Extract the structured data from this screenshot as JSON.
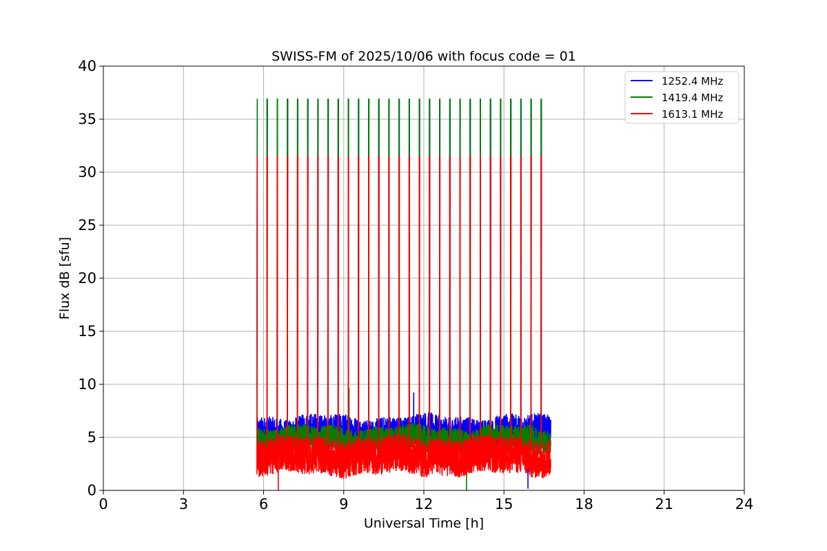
{
  "chart_data": {
    "type": "line",
    "title": "SWISS-FM of 2025/10/06 with focus code = 01",
    "xlabel": "Universal Time [h]",
    "ylabel": "Flux dB [sfu]",
    "xlim": [
      0,
      24
    ],
    "ylim": [
      0,
      40
    ],
    "xticks": [
      0,
      3,
      6,
      9,
      12,
      15,
      18,
      21,
      24
    ],
    "yticks": [
      0,
      5,
      10,
      15,
      20,
      25,
      30,
      35,
      40
    ],
    "grid": true,
    "legend_position": "top-right",
    "observation_window": [
      5.75,
      16.75
    ],
    "calibration_pulse_interval_h": 0.38,
    "series": [
      {
        "name": "1252.4 MHz",
        "color": "#0000ff",
        "baseline_low": 4.0,
        "baseline_high": 7.0,
        "spike_peak": 36.8,
        "notable_values": [
          {
            "x": 11.62,
            "y": 9.2
          },
          {
            "x": 15.9,
            "y": 0.2
          }
        ]
      },
      {
        "name": "1419.4 MHz",
        "color": "#008000",
        "baseline_low": 3.5,
        "baseline_high": 6.0,
        "spike_peak": 36.9,
        "notable_values": [
          {
            "x": 9.2,
            "y": 9.6
          },
          {
            "x": 13.6,
            "y": 0.0
          }
        ]
      },
      {
        "name": "1613.1 MHz",
        "color": "#ff0000",
        "baseline_low": 1.5,
        "baseline_high": 5.0,
        "spike_peak": 31.5,
        "notable_values": [
          {
            "x": 6.55,
            "y": 0.0
          }
        ]
      }
    ]
  }
}
